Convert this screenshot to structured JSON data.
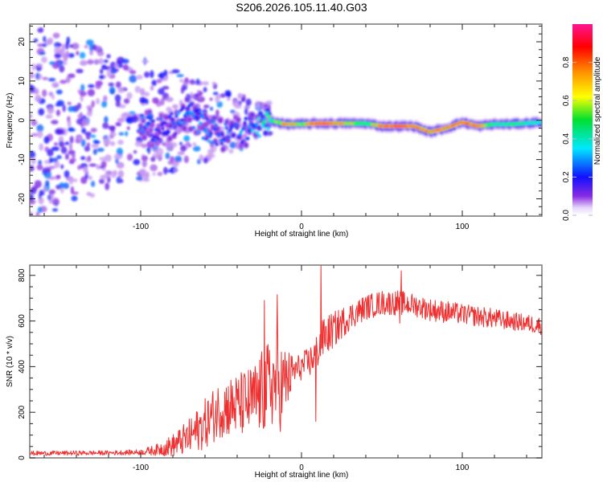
{
  "figure": {
    "title": "S206.2026.105.11.40.G03"
  },
  "chart_data": [
    {
      "type": "heatmap",
      "name": "spectrogram",
      "xlabel": "Height of straight line (km)",
      "ylabel": "Frequency (Hz)",
      "xlim": [
        -169,
        149.5
      ],
      "ylim": [
        -24.4,
        24.5
      ],
      "x_ticks": [
        -100,
        0,
        100
      ],
      "x_tick_labels": [
        "-100",
        "0",
        "100"
      ],
      "y_ticks": [
        -20,
        -10,
        0,
        10,
        20
      ],
      "y_tick_labels": [
        "-20",
        "-10",
        "0",
        "10",
        "20"
      ],
      "colorbar": {
        "label": "Normalized spectral amplitude",
        "range": [
          0,
          1
        ],
        "ticks": [
          0.0,
          0.2,
          0.4,
          0.6,
          0.8
        ],
        "tick_labels": [
          "0.0",
          "0.2",
          "0.4",
          "0.6",
          "0.8"
        ],
        "colormap": [
          "#ffffff",
          "#d6b8f5",
          "#8a2be2",
          "#1010ff",
          "#00e0ff",
          "#00ff40",
          "#ffff00",
          "#ff9000",
          "#ff0000",
          "#ff1493"
        ]
      },
      "ridge": {
        "description": "Dominant signal frequency track",
        "points": [
          {
            "x": -100,
            "y": 0,
            "amp": 0.3
          },
          {
            "x": -90,
            "y": -3,
            "amp": 0.25
          },
          {
            "x": -80,
            "y": -1,
            "amp": 0.3
          },
          {
            "x": -70,
            "y": 2,
            "amp": 0.3
          },
          {
            "x": -60,
            "y": -2,
            "amp": 0.3
          },
          {
            "x": -50,
            "y": -4,
            "amp": 0.3
          },
          {
            "x": -40,
            "y": -3,
            "amp": 0.3
          },
          {
            "x": -30,
            "y": -2,
            "amp": 0.35
          },
          {
            "x": -20,
            "y": 0,
            "amp": 0.55
          },
          {
            "x": -10,
            "y": -1,
            "amp": 0.85
          },
          {
            "x": 0,
            "y": -1,
            "amp": 0.7
          },
          {
            "x": 10,
            "y": -0.8,
            "amp": 0.95
          },
          {
            "x": 20,
            "y": -0.8,
            "amp": 0.9
          },
          {
            "x": 30,
            "y": -0.8,
            "amp": 0.75
          },
          {
            "x": 40,
            "y": -0.8,
            "amp": 0.6
          },
          {
            "x": 50,
            "y": -1.5,
            "amp": 0.9
          },
          {
            "x": 60,
            "y": -1.5,
            "amp": 0.95
          },
          {
            "x": 70,
            "y": -1.5,
            "amp": 0.9
          },
          {
            "x": 80,
            "y": -3,
            "amp": 0.85
          },
          {
            "x": 90,
            "y": -2,
            "amp": 0.85
          },
          {
            "x": 100,
            "y": -0.5,
            "amp": 0.9
          },
          {
            "x": 110,
            "y": -1.5,
            "amp": 0.9
          },
          {
            "x": 120,
            "y": -1,
            "amp": 0.55
          },
          {
            "x": 130,
            "y": -1,
            "amp": 0.6
          },
          {
            "x": 149,
            "y": -0.5,
            "amp": 0.55
          }
        ],
        "noise_region": {
          "x_from": -169,
          "x_to": -20,
          "amp_range": [
            0.05,
            0.3
          ]
        }
      }
    },
    {
      "type": "line",
      "name": "snr",
      "xlabel": "Height of straight line (km)",
      "ylabel": "SNR (10 * v/v)",
      "xlim": [
        -169,
        149.5
      ],
      "ylim": [
        0,
        845
      ],
      "x_ticks": [
        -100,
        0,
        100
      ],
      "x_tick_labels": [
        "-100",
        "0",
        "100"
      ],
      "y_ticks": [
        0,
        200,
        400,
        600,
        800
      ],
      "y_tick_labels": [
        "0",
        "200",
        "400",
        "600",
        "800"
      ],
      "color": "#f03030",
      "envelope": {
        "x": [
          -169,
          -120,
          -100,
          -90,
          -80,
          -70,
          -60,
          -50,
          -40,
          -30,
          -22,
          -18,
          -12,
          -5,
          0,
          5,
          10,
          14,
          20,
          30,
          40,
          50,
          60,
          70,
          80,
          90,
          100,
          110,
          120,
          130,
          140,
          149
        ],
        "y": [
          20,
          22,
          25,
          35,
          55,
          90,
          150,
          220,
          230,
          250,
          300,
          330,
          310,
          380,
          400,
          420,
          470,
          530,
          560,
          620,
          660,
          680,
          680,
          670,
          650,
          640,
          630,
          620,
          610,
          600,
          590,
          580
        ],
        "noise": [
          10,
          10,
          12,
          25,
          50,
          80,
          110,
          130,
          140,
          160,
          200,
          200,
          200,
          70,
          60,
          70,
          80,
          90,
          80,
          60,
          55,
          55,
          55,
          50,
          50,
          50,
          45,
          45,
          45,
          40,
          40,
          40
        ]
      },
      "spikes": [
        {
          "x": -23,
          "y": 690
        },
        {
          "x": -15,
          "y": 715
        },
        {
          "x": 12,
          "y": 845
        },
        {
          "x": 9,
          "y": 160
        },
        {
          "x": 62,
          "y": 820
        },
        {
          "x": 61,
          "y": 590
        }
      ]
    }
  ]
}
